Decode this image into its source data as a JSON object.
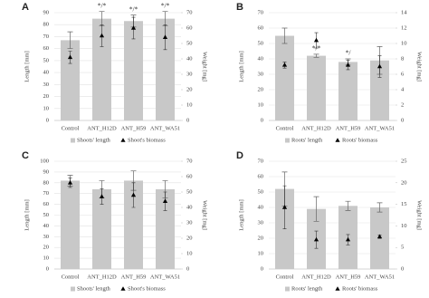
{
  "chart_data": [
    {
      "type": "bar",
      "title": "A",
      "ylabel": "Length [mm]",
      "y2label": "Weight [mg]",
      "categories": [
        "Control",
        "ANT_H12D",
        "ANT_H59",
        "ANT_WA51"
      ],
      "series": [
        {
          "name": "Shoots' length",
          "color": "#c8c8c8",
          "values": [
            67,
            85,
            83,
            85
          ],
          "errors": [
            7,
            6,
            5,
            6
          ]
        },
        {
          "name": "Shoot's biomass",
          "color": "#000000",
          "axis": "y2",
          "values": [
            41,
            55,
            60,
            54
          ],
          "errors": [
            4,
            7,
            7,
            8
          ]
        }
      ],
      "annotations": [
        {
          "category": "ANT_H12D",
          "text": "*/*"
        },
        {
          "category": "ANT_H59",
          "text": "*/*"
        },
        {
          "category": "ANT_WA51",
          "text": "*/*"
        }
      ],
      "ylim": [
        0,
        90
      ],
      "yticks": [
        0,
        10,
        20,
        30,
        40,
        50,
        60,
        70,
        80,
        90
      ],
      "y2lim": [
        0,
        70
      ],
      "y2ticks": [
        0,
        10,
        20,
        30,
        40,
        50,
        60,
        70
      ],
      "grid": true
    },
    {
      "type": "bar",
      "title": "B",
      "ylabel": "Length [mm]",
      "y2label": "Weight [mg]",
      "categories": [
        "Control",
        "ANT_H12D",
        "ANT_H59",
        "ANT_WA51"
      ],
      "series": [
        {
          "name": "Roots' length",
          "color": "#c8c8c8",
          "values": [
            55,
            42,
            38,
            39
          ],
          "errors": [
            5,
            1,
            2,
            9
          ]
        },
        {
          "name": "Roots' biomass",
          "color": "#000000",
          "axis": "y2",
          "values": [
            7.2,
            10.4,
            7.2,
            7
          ],
          "errors": [
            0.4,
            1,
            0.6,
            1.4
          ]
        }
      ],
      "annotations": [
        {
          "category": "ANT_H12D",
          "text": "*/*"
        },
        {
          "category": "ANT_H59",
          "text": "*/"
        }
      ],
      "ylim": [
        0,
        70
      ],
      "yticks": [
        0,
        10,
        20,
        30,
        40,
        50,
        60,
        70
      ],
      "y2lim": [
        0,
        14
      ],
      "y2ticks": [
        0,
        2,
        4,
        6,
        8,
        10,
        12,
        14
      ],
      "grid": true
    },
    {
      "type": "bar",
      "title": "C",
      "ylabel": "Length [mm]",
      "y2label": "Weight [mg]",
      "categories": [
        "Control",
        "ANT_H12D",
        "ANT_H59",
        "ANT_WA51"
      ],
      "series": [
        {
          "name": "Shoots' length",
          "color": "#c8c8c8",
          "values": [
            82,
            74,
            82,
            74
          ],
          "errors": [
            5,
            8,
            9,
            8
          ]
        },
        {
          "name": "Shoot's biomass",
          "color": "#000000",
          "axis": "y2",
          "values": [
            56,
            47,
            48,
            44
          ],
          "errors": [
            3,
            5,
            8,
            6
          ]
        }
      ],
      "annotations": [],
      "ylim": [
        0,
        100
      ],
      "yticks": [
        0,
        10,
        20,
        30,
        40,
        50,
        60,
        70,
        80,
        90,
        100
      ],
      "y2lim": [
        0,
        70
      ],
      "y2ticks": [
        0,
        10,
        20,
        30,
        40,
        50,
        60,
        70
      ],
      "grid": true
    },
    {
      "type": "bar",
      "title": "D",
      "ylabel": "Length [mm]",
      "y2label": "Weight [mg]",
      "categories": [
        "Control",
        "ANT_H12D",
        "ANT_H59",
        "ANT_WA51"
      ],
      "series": [
        {
          "name": "Roots' length",
          "color": "#c8c8c8",
          "values": [
            52,
            39,
            41,
            40
          ],
          "errors": [
            11,
            8,
            3,
            3
          ]
        },
        {
          "name": "Roots' biomass",
          "color": "#000000",
          "axis": "y2",
          "values": [
            14.3,
            6.8,
            6.8,
            7.5
          ],
          "errors": [
            5,
            2,
            1.2,
            0.4
          ]
        }
      ],
      "annotations": [],
      "ylim": [
        0,
        70
      ],
      "yticks": [
        0,
        10,
        20,
        30,
        40,
        50,
        60,
        70
      ],
      "y2lim": [
        0,
        25
      ],
      "y2ticks": [
        0,
        5,
        10,
        15,
        20,
        25
      ],
      "grid": true
    }
  ]
}
